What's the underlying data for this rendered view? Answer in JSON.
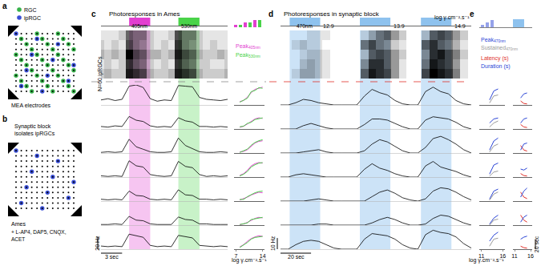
{
  "figure": {
    "a": {
      "letter": "a",
      "legend": [
        {
          "label": "RGC",
          "color": "#36b24a"
        },
        {
          "label": "ipRGC",
          "color": "#3a4fd6"
        }
      ],
      "electrodes_label": "MEA electrodes"
    },
    "b": {
      "letter": "b",
      "title": "Synaptic block isolates ipRGCs",
      "medium": "Ames",
      "drugs": "+ L-AP4, DAP5, CNQX, ACET"
    },
    "c": {
      "letter": "c",
      "title": "Photoresponses in Ames"
    },
    "d": {
      "letter": "d",
      "title": "Photoresponses in synaptic block"
    },
    "e": {
      "letter": "e"
    }
  },
  "chart_data": [
    {
      "panel": "c",
      "type": "heatmap",
      "label": "N=60 ipRGCs",
      "tick_labels": false,
      "x": [
        0,
        1,
        2,
        3,
        4,
        5,
        6,
        7,
        8,
        9,
        10,
        11,
        12,
        13,
        14,
        15,
        16,
        17,
        18
      ],
      "xlim": [
        0,
        18
      ],
      "zlim": [
        0,
        1
      ],
      "cells": [
        [
          0.2,
          0.3,
          0.2,
          0.2,
          0.9,
          0.8,
          0.7,
          0.3,
          0.2,
          0.2,
          0.3,
          0.9,
          0.8,
          0.7,
          0.3,
          0.2,
          0.2,
          0.2,
          0.3
        ],
        [
          0.1,
          0.2,
          0.1,
          0.2,
          0.8,
          0.6,
          0.5,
          0.2,
          0.1,
          0.2,
          0.1,
          0.8,
          0.6,
          0.5,
          0.2,
          0.2,
          0.1,
          0.1,
          0.2
        ],
        [
          0.3,
          0.2,
          0.3,
          0.2,
          1.0,
          0.7,
          0.6,
          0.3,
          0.3,
          0.2,
          0.3,
          0.9,
          0.7,
          0.6,
          0.3,
          0.2,
          0.2,
          0.3,
          0.2
        ],
        [
          0.2,
          0.1,
          0.2,
          0.1,
          0.7,
          0.5,
          0.4,
          0.2,
          0.1,
          0.2,
          0.1,
          0.8,
          0.5,
          0.4,
          0.2,
          0.1,
          0.2,
          0.1,
          0.1
        ],
        [
          0.1,
          0.1,
          0.1,
          0.2,
          0.6,
          0.5,
          0.5,
          0.2,
          0.1,
          0.1,
          0.2,
          0.7,
          0.5,
          0.5,
          0.2,
          0.1,
          0.1,
          0.1,
          0.1
        ]
      ]
    },
    {
      "panel": "c",
      "type": "line",
      "color": "#000000",
      "tick_labels": false,
      "x": [
        0,
        1,
        2,
        3,
        4,
        5,
        6,
        7,
        8,
        9,
        10,
        11,
        12,
        13,
        14,
        15,
        16,
        17,
        18
      ],
      "xlim": [
        0,
        18
      ],
      "ylim": [
        0,
        32
      ],
      "stimuli": [
        {
          "label": "405nm",
          "start": 4,
          "end": 7,
          "color": "#e23fd0"
        },
        {
          "label": "530nm",
          "start": 11,
          "end": 14,
          "color": "#49d349"
        }
      ],
      "scale_bars": {
        "y": {
          "value": 20,
          "label": "20 Hz"
        },
        "x": {
          "value": 3,
          "label": "3 sec"
        }
      },
      "rows": [
        [
          8,
          10,
          7,
          9,
          30,
          32,
          28,
          10,
          6,
          8,
          7,
          31,
          30,
          29,
          12,
          9,
          8,
          7,
          9
        ],
        [
          4,
          3,
          5,
          4,
          20,
          14,
          12,
          5,
          3,
          4,
          3,
          18,
          13,
          11,
          4,
          4,
          3,
          4,
          3
        ],
        [
          1,
          2,
          1,
          2,
          22,
          10,
          6,
          2,
          1,
          1,
          2,
          24,
          12,
          7,
          2,
          1,
          1,
          2,
          1
        ],
        [
          2,
          1,
          2,
          1,
          26,
          18,
          16,
          4,
          2,
          1,
          2,
          25,
          17,
          15,
          4,
          1,
          2,
          1,
          2
        ],
        [
          3,
          2,
          3,
          2,
          16,
          9,
          8,
          3,
          2,
          3,
          2,
          18,
          10,
          9,
          3,
          3,
          2,
          3,
          2
        ],
        [
          1,
          1,
          2,
          1,
          14,
          8,
          7,
          2,
          1,
          1,
          1,
          13,
          9,
          8,
          2,
          2,
          1,
          1,
          1
        ],
        [
          5,
          4,
          5,
          4,
          24,
          21,
          19,
          6,
          4,
          5,
          4,
          22,
          20,
          18,
          6,
          5,
          4,
          5,
          4
        ]
      ]
    },
    {
      "panel": "c",
      "type": "line",
      "tick_labels": "x",
      "x_label": "log γ.cm⁻².s⁻¹",
      "x": [
        8,
        9,
        10,
        11,
        12,
        13,
        14
      ],
      "xlim": [
        6.5,
        14.5
      ],
      "xticks": [
        7,
        14
      ],
      "ylim": [
        0,
        36
      ],
      "series": [
        {
          "name": "Peak",
          "subscript": "405nm",
          "color": "#e23fd0",
          "rows": [
            [
              6,
              8,
              14,
              22,
              28,
              30,
              32
            ],
            [
              3,
              5,
              9,
              14,
              18,
              20,
              19
            ],
            [
              2,
              3,
              6,
              12,
              18,
              21,
              22
            ],
            [
              3,
              6,
              12,
              20,
              24,
              26,
              25
            ],
            [
              2,
              4,
              7,
              11,
              14,
              16,
              15
            ],
            [
              1,
              2,
              5,
              9,
              12,
              14,
              13
            ],
            [
              4,
              8,
              14,
              19,
              22,
              24,
              23
            ]
          ]
        },
        {
          "name": "Peak",
          "subscript": "530nm",
          "color": "#49d349",
          "rows": [
            [
              5,
              9,
              12,
              24,
              26,
              31,
              30
            ],
            [
              4,
              5,
              10,
              12,
              17,
              18,
              20
            ],
            [
              1,
              4,
              7,
              14,
              19,
              22,
              24
            ],
            [
              2,
              5,
              10,
              18,
              22,
              25,
              26
            ],
            [
              3,
              3,
              8,
              12,
              15,
              17,
              18
            ],
            [
              1,
              3,
              4,
              10,
              11,
              13,
              14
            ],
            [
              3,
              7,
              12,
              18,
              21,
              22,
              23
            ]
          ]
        }
      ]
    },
    {
      "panel": "d",
      "type": "heatmap",
      "tick_labels": false,
      "x": [
        0,
        5,
        10,
        15,
        20,
        25,
        30,
        35,
        40,
        45,
        50,
        55,
        60,
        65,
        70,
        75,
        80,
        85,
        90,
        95,
        100,
        105,
        110,
        115,
        120,
        125
      ],
      "xlim": [
        0,
        125
      ],
      "zlim": [
        0,
        1
      ],
      "cells": [
        [
          0,
          0,
          0.1,
          0.3,
          0.3,
          0.2,
          0.1,
          0,
          0,
          0,
          0,
          0.6,
          0.9,
          0.8,
          0.7,
          0.4,
          0.1,
          0,
          0,
          0.7,
          1.0,
          0.9,
          0.8,
          0.5,
          0.1,
          0
        ],
        [
          0,
          0,
          0,
          0.2,
          0.3,
          0.2,
          0.1,
          0,
          0,
          0,
          0,
          0.4,
          0.8,
          0.8,
          0.6,
          0.4,
          0.1,
          0,
          0,
          0.5,
          0.9,
          0.8,
          0.7,
          0.4,
          0.1,
          0
        ],
        [
          0,
          0,
          0,
          0.1,
          0.2,
          0.2,
          0.1,
          0,
          0,
          0,
          0,
          0.2,
          0.6,
          0.7,
          0.6,
          0.4,
          0.2,
          0,
          0,
          0.4,
          0.8,
          0.9,
          0.7,
          0.5,
          0.2,
          0
        ],
        [
          0,
          0,
          0.1,
          0.2,
          0.1,
          0.1,
          0,
          0,
          0,
          0,
          0,
          0.5,
          0.7,
          0.5,
          0.4,
          0.2,
          0.1,
          0,
          0,
          0.6,
          0.8,
          0.6,
          0.5,
          0.3,
          0.1,
          0
        ],
        [
          0,
          0,
          0,
          0,
          0.1,
          0.1,
          0.1,
          0,
          0,
          0,
          0,
          0.1,
          0.3,
          0.5,
          0.6,
          0.4,
          0.2,
          0,
          0,
          0.2,
          0.6,
          0.7,
          0.6,
          0.4,
          0.2,
          0
        ]
      ]
    },
    {
      "panel": "d",
      "type": "line",
      "color": "#000000",
      "tick_labels": false,
      "wavelength": "470nm",
      "intensity_unit": "log γ.cm⁻².s⁻¹",
      "x": [
        0,
        5,
        10,
        15,
        20,
        25,
        30,
        35,
        40,
        45,
        50,
        55,
        60,
        65,
        70,
        75,
        80,
        85,
        90,
        95,
        100,
        105,
        110,
        115,
        120,
        125
      ],
      "xlim": [
        0,
        125
      ],
      "ylim": [
        0,
        18
      ],
      "stimuli": [
        {
          "label": "12.9",
          "start": 6,
          "end": 26,
          "color": "#8ec2ee"
        },
        {
          "label": "13.9",
          "start": 52,
          "end": 72,
          "color": "#8ec2ee"
        },
        {
          "label": "14.9",
          "start": 92,
          "end": 112,
          "color": "#8ec2ee"
        }
      ],
      "scale_bars": {
        "y": {
          "value": 10,
          "label": "10 Hz"
        },
        "x": {
          "value": 20,
          "label": "20 sec"
        }
      },
      "rows": [
        [
          0,
          0,
          2,
          5,
          4,
          2,
          1,
          0,
          0,
          0,
          0,
          8,
          14,
          11,
          9,
          4,
          1,
          0,
          0,
          12,
          16,
          12,
          10,
          4,
          1,
          0
        ],
        [
          0,
          0,
          0,
          3,
          5,
          3,
          1,
          0,
          0,
          0,
          0,
          4,
          9,
          9,
          8,
          5,
          2,
          0,
          0,
          8,
          11,
          10,
          9,
          6,
          2,
          0
        ],
        [
          0,
          0,
          0,
          1,
          2,
          3,
          1,
          0,
          0,
          0,
          0,
          2,
          8,
          12,
          10,
          6,
          2,
          0,
          0,
          5,
          13,
          15,
          12,
          8,
          3,
          0
        ],
        [
          0,
          0,
          2,
          3,
          2,
          1,
          0,
          0,
          0,
          0,
          0,
          7,
          12,
          8,
          6,
          3,
          1,
          0,
          0,
          10,
          14,
          9,
          7,
          5,
          2,
          0
        ],
        [
          0,
          0,
          0,
          0,
          1,
          2,
          1,
          0,
          0,
          0,
          0,
          0,
          4,
          8,
          10,
          7,
          3,
          1,
          0,
          2,
          9,
          12,
          11,
          8,
          4,
          1
        ],
        [
          0,
          0,
          0,
          0,
          0,
          1,
          1,
          0,
          0,
          0,
          0,
          0,
          2,
          5,
          7,
          5,
          2,
          0,
          0,
          1,
          6,
          9,
          8,
          5,
          2,
          0
        ],
        [
          0,
          0,
          4,
          7,
          8,
          7,
          4,
          1,
          0,
          0,
          0,
          9,
          14,
          13,
          12,
          9,
          4,
          1,
          0,
          13,
          17,
          15,
          14,
          11,
          5,
          1
        ]
      ]
    },
    {
      "panel": "e",
      "type": "line",
      "tick_labels": "x",
      "x_label": "log γ.cm⁻².s⁻¹",
      "x": [
        12.9,
        13.9,
        14.9
      ],
      "xlim": [
        10.5,
        16.5
      ],
      "xticks": [
        11,
        16
      ],
      "ylim": [
        0,
        20
      ],
      "series": [
        {
          "name": "Peak",
          "subscript": "470nm",
          "color": "#2b45d6",
          "rows": [
            [
              5,
              14,
              16
            ],
            [
              6,
              10,
              11
            ],
            [
              3,
              12,
              15
            ],
            [
              3,
              12,
              14
            ],
            [
              2,
              10,
              12
            ],
            [
              1,
              7,
              10
            ],
            [
              8,
              14,
              17
            ]
          ]
        },
        {
          "name": "Sustained",
          "subscript": "470nm",
          "color": "#9a9a9a",
          "rows": [
            [
              2,
              9,
              10
            ],
            [
              2,
              6,
              8
            ],
            [
              1,
              7,
              9
            ],
            [
              1,
              5,
              6
            ],
            [
              1,
              7,
              9
            ],
            [
              0,
              5,
              6
            ],
            [
              3,
              10,
              11
            ]
          ]
        }
      ]
    },
    {
      "panel": "e",
      "type": "line",
      "tick_labels": "x",
      "x": [
        12.9,
        13.9,
        14.9
      ],
      "xlim": [
        10.5,
        16.5
      ],
      "xticks": [
        11,
        16
      ],
      "ylim": [
        0,
        40
      ],
      "scale_bars": {
        "y": {
          "value": 20,
          "label": "20 sec"
        }
      },
      "series": [
        {
          "name": "Latency (s)",
          "color": "#e0302a",
          "rows": [
            [
              8,
              3,
              2
            ],
            [
              9,
              4,
              3
            ],
            [
              15,
              6,
              4
            ],
            [
              7,
              3,
              2
            ],
            [
              18,
              8,
              5
            ],
            [
              20,
              10,
              6
            ],
            [
              6,
              3,
              2
            ]
          ]
        },
        {
          "name": "Duration (s)",
          "color": "#2b45d6",
          "rows": [
            [
              14,
              22,
              24
            ],
            [
              12,
              20,
              22
            ],
            [
              6,
              18,
              20
            ],
            [
              16,
              14,
              18
            ],
            [
              8,
              20,
              26
            ],
            [
              6,
              16,
              20
            ],
            [
              20,
              24,
              26
            ]
          ]
        }
      ]
    }
  ]
}
